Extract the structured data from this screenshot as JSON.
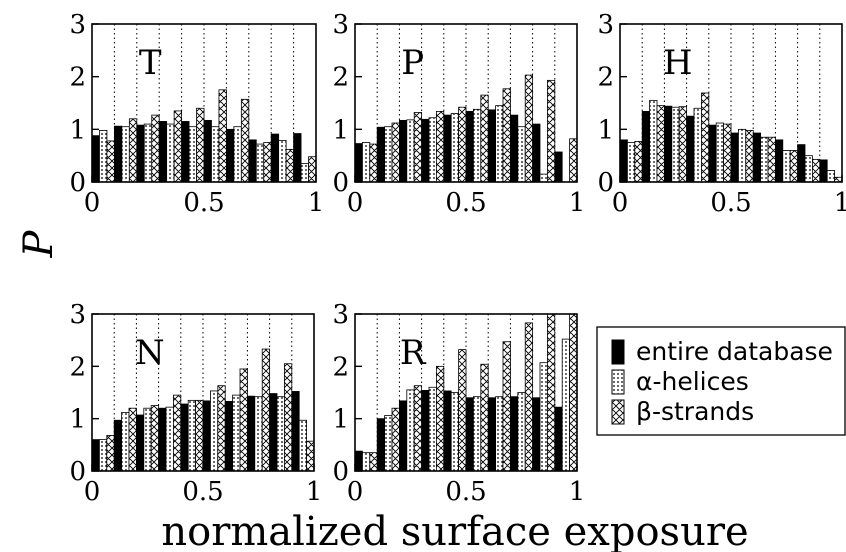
{
  "chart_data": {
    "type": "bar",
    "xlabel": "normalized surface exposure",
    "ylabel": "P",
    "xlim": [
      0,
      1
    ],
    "ylim": [
      0,
      3
    ],
    "xticks": [
      "0",
      "0.5",
      "1"
    ],
    "yticks": [
      "0",
      "1",
      "2",
      "3"
    ],
    "grid": "vertical dotted",
    "legend_position": "right of bottom row",
    "legend": [
      {
        "key": "all",
        "label": "entire database",
        "pattern": "solid"
      },
      {
        "key": "helix",
        "label": "α-helices",
        "pattern": "dots"
      },
      {
        "key": "strand",
        "label": "β-strands",
        "pattern": "crosshatch"
      }
    ],
    "bins": [
      0.05,
      0.15,
      0.25,
      0.35,
      0.45,
      0.55,
      0.65,
      0.75,
      0.85,
      0.95
    ],
    "panels": [
      {
        "label": "T",
        "series": {
          "all": [
            0.88,
            1.06,
            1.08,
            1.15,
            1.15,
            1.17,
            1.0,
            0.8,
            0.91,
            0.92
          ],
          "helix": [
            0.98,
            1.05,
            1.1,
            1.1,
            1.05,
            1.05,
            1.05,
            0.72,
            0.79,
            0.35
          ],
          "strand": [
            0.78,
            1.2,
            1.27,
            1.35,
            1.4,
            1.75,
            1.57,
            0.75,
            0.62,
            0.48
          ]
        }
      },
      {
        "label": "P",
        "series": {
          "all": [
            0.73,
            1.04,
            1.17,
            1.19,
            1.27,
            1.34,
            1.37,
            1.27,
            1.1,
            0.57
          ],
          "helix": [
            0.75,
            1.05,
            1.18,
            1.22,
            1.3,
            1.38,
            1.45,
            1.05,
            0.15,
            0.0
          ],
          "strand": [
            0.72,
            1.12,
            1.32,
            1.34,
            1.42,
            1.65,
            1.77,
            2.03,
            1.93,
            0.82
          ]
        }
      },
      {
        "label": "H",
        "series": {
          "all": [
            0.8,
            1.34,
            1.44,
            1.25,
            1.08,
            0.93,
            0.93,
            0.8,
            0.71,
            0.42
          ],
          "helix": [
            0.75,
            1.55,
            1.42,
            1.4,
            1.12,
            1.0,
            0.85,
            0.6,
            0.5,
            0.22
          ],
          "strand": [
            0.77,
            1.45,
            1.43,
            1.69,
            1.1,
            0.98,
            0.85,
            0.6,
            0.43,
            0.09
          ]
        }
      },
      {
        "label": "N",
        "series": {
          "all": [
            0.6,
            0.97,
            1.07,
            1.2,
            1.28,
            1.34,
            1.33,
            1.43,
            1.48,
            1.52
          ],
          "helix": [
            0.6,
            1.12,
            1.2,
            1.22,
            1.35,
            1.53,
            1.45,
            1.42,
            1.42,
            0.97
          ],
          "strand": [
            0.68,
            1.2,
            1.25,
            1.45,
            1.35,
            1.63,
            1.95,
            2.33,
            2.05,
            0.57
          ]
        }
      },
      {
        "label": "R",
        "series": {
          "all": [
            0.38,
            1.0,
            1.34,
            1.54,
            1.53,
            1.4,
            1.4,
            1.42,
            1.4,
            1.22
          ],
          "helix": [
            0.35,
            1.06,
            1.55,
            1.6,
            1.5,
            1.42,
            1.42,
            1.5,
            2.07,
            2.52
          ],
          "strand": [
            0.35,
            1.2,
            1.63,
            2.0,
            2.32,
            2.04,
            2.47,
            2.83,
            3.0,
            3.0
          ]
        }
      }
    ]
  }
}
